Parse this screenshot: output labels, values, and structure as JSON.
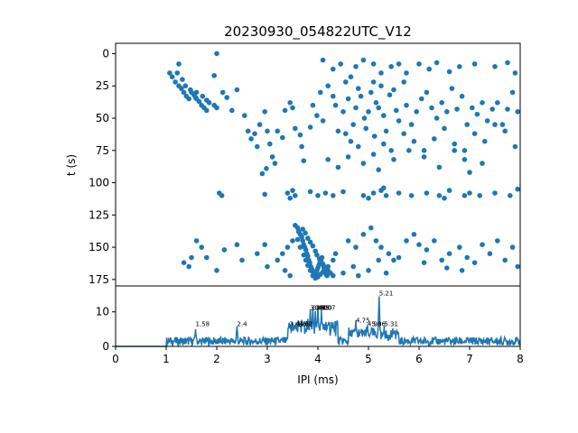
{
  "chart_data": [
    {
      "type": "scatter",
      "title": "20230930_054822UTC_V12",
      "ylabel": "t (s)",
      "xlim": [
        0,
        8
      ],
      "ylim": [
        180,
        -8
      ],
      "y_inverted": true,
      "yticks": [
        "0",
        "25",
        "50",
        "75",
        "100",
        "125",
        "150",
        "175"
      ],
      "color": "#1f77b4",
      "points": [
        [
          1.07,
          15
        ],
        [
          1.12,
          18
        ],
        [
          1.18,
          22
        ],
        [
          1.25,
          25
        ],
        [
          1.3,
          27
        ],
        [
          1.35,
          30
        ],
        [
          1.4,
          33
        ],
        [
          1.45,
          35
        ],
        [
          1.5,
          30
        ],
        [
          1.55,
          32
        ],
        [
          1.6,
          35
        ],
        [
          1.65,
          37
        ],
        [
          1.7,
          40
        ],
        [
          1.75,
          42
        ],
        [
          1.8,
          44
        ],
        [
          1.22,
          15
        ],
        [
          1.32,
          20
        ],
        [
          1.48,
          28
        ],
        [
          1.6,
          30
        ],
        [
          1.72,
          33
        ],
        [
          1.8,
          36
        ],
        [
          1.85,
          38
        ],
        [
          1.95,
          40
        ],
        [
          2.0,
          42
        ],
        [
          1.25,
          8
        ],
        [
          1.38,
          25
        ],
        [
          1.58,
          34
        ],
        [
          2.0,
          0
        ],
        [
          1.95,
          17
        ],
        [
          2.12,
          30
        ],
        [
          2.2,
          34
        ],
        [
          2.4,
          28
        ],
        [
          2.3,
          44
        ],
        [
          2.55,
          48
        ],
        [
          2.62,
          60
        ],
        [
          2.68,
          66
        ],
        [
          2.75,
          62
        ],
        [
          2.8,
          72
        ],
        [
          2.85,
          55
        ],
        [
          2.95,
          45
        ],
        [
          3.0,
          60
        ],
        [
          3.05,
          70
        ],
        [
          3.1,
          80
        ],
        [
          3.15,
          85
        ],
        [
          2.9,
          93
        ],
        [
          2.98,
          89
        ],
        [
          3.2,
          60
        ],
        [
          3.3,
          65
        ],
        [
          3.35,
          44
        ],
        [
          3.45,
          38
        ],
        [
          3.5,
          42
        ],
        [
          3.55,
          58
        ],
        [
          3.65,
          63
        ],
        [
          3.68,
          72
        ],
        [
          3.72,
          83
        ],
        [
          3.85,
          57
        ],
        [
          3.9,
          40
        ],
        [
          3.98,
          48
        ],
        [
          4.05,
          30
        ],
        [
          4.1,
          52
        ],
        [
          4.2,
          25
        ],
        [
          4.3,
          33
        ],
        [
          4.35,
          40
        ],
        [
          4.4,
          60
        ],
        [
          4.5,
          45
        ],
        [
          4.55,
          22
        ],
        [
          4.6,
          35
        ],
        [
          4.7,
          55
        ],
        [
          4.75,
          42
        ],
        [
          4.8,
          27
        ],
        [
          4.85,
          33
        ],
        [
          4.92,
          50
        ],
        [
          5.0,
          45
        ],
        [
          5.05,
          30
        ],
        [
          5.1,
          22
        ],
        [
          5.15,
          38
        ],
        [
          5.2,
          42
        ],
        [
          5.25,
          25
        ],
        [
          5.3,
          48
        ],
        [
          5.35,
          60
        ],
        [
          5.42,
          32
        ],
        [
          5.5,
          28
        ],
        [
          5.55,
          44
        ],
        [
          5.6,
          52
        ],
        [
          5.7,
          22
        ],
        [
          5.75,
          40
        ],
        [
          5.85,
          55
        ],
        [
          5.95,
          45
        ],
        [
          6.05,
          35
        ],
        [
          6.15,
          30
        ],
        [
          6.25,
          42
        ],
        [
          6.35,
          50
        ],
        [
          6.45,
          38
        ],
        [
          6.55,
          45
        ],
        [
          6.65,
          27
        ],
        [
          6.75,
          43
        ],
        [
          6.85,
          33
        ],
        [
          6.95,
          55
        ],
        [
          7.05,
          42
        ],
        [
          7.15,
          47
        ],
        [
          7.25,
          38
        ],
        [
          7.35,
          52
        ],
        [
          7.45,
          43
        ],
        [
          7.55,
          38
        ],
        [
          7.65,
          55
        ],
        [
          7.75,
          43
        ],
        [
          7.85,
          30
        ],
        [
          7.95,
          45
        ],
        [
          4.1,
          5
        ],
        [
          4.3,
          12
        ],
        [
          4.45,
          8
        ],
        [
          4.65,
          18
        ],
        [
          4.75,
          10
        ],
        [
          4.9,
          5
        ],
        [
          5.1,
          8
        ],
        [
          5.25,
          15
        ],
        [
          5.45,
          10
        ],
        [
          5.6,
          8
        ],
        [
          5.75,
          15
        ],
        [
          6.0,
          8
        ],
        [
          6.2,
          12
        ],
        [
          6.35,
          7
        ],
        [
          6.6,
          14
        ],
        [
          6.8,
          10
        ],
        [
          7.1,
          8
        ],
        [
          7.5,
          10
        ],
        [
          7.75,
          7
        ],
        [
          7.9,
          15
        ],
        [
          4.55,
          62
        ],
        [
          4.65,
          68
        ],
        [
          4.8,
          72
        ],
        [
          4.95,
          58
        ],
        [
          5.12,
          64
        ],
        [
          5.3,
          70
        ],
        [
          5.45,
          75
        ],
        [
          5.7,
          62
        ],
        [
          5.9,
          68
        ],
        [
          6.1,
          75
        ],
        [
          6.3,
          66
        ],
        [
          6.5,
          58
        ],
        [
          6.7,
          70
        ],
        [
          6.9,
          75
        ],
        [
          7.1,
          62
        ],
        [
          7.3,
          68
        ],
        [
          7.5,
          55
        ],
        [
          7.7,
          60
        ],
        [
          7.9,
          72
        ],
        [
          4.2,
          82
        ],
        [
          4.4,
          88
        ],
        [
          4.6,
          80
        ],
        [
          4.9,
          85
        ],
        [
          5.1,
          78
        ],
        [
          5.2,
          90
        ],
        [
          5.5,
          82
        ],
        [
          5.8,
          75
        ],
        [
          6.1,
          80
        ],
        [
          6.4,
          88
        ],
        [
          6.7,
          75
        ],
        [
          6.9,
          82
        ],
        [
          7.0,
          92
        ],
        [
          7.25,
          85
        ],
        [
          2.05,
          108
        ],
        [
          2.1,
          110
        ],
        [
          2.95,
          109
        ],
        [
          3.4,
          108
        ],
        [
          3.45,
          112
        ],
        [
          3.5,
          106
        ],
        [
          3.55,
          110
        ],
        [
          3.85,
          107
        ],
        [
          4.0,
          110
        ],
        [
          4.15,
          108
        ],
        [
          4.3,
          110
        ],
        [
          4.5,
          107
        ],
        [
          4.9,
          110
        ],
        [
          5.0,
          112
        ],
        [
          5.1,
          108
        ],
        [
          5.25,
          106
        ],
        [
          5.35,
          110
        ],
        [
          5.6,
          108
        ],
        [
          5.85,
          110
        ],
        [
          6.15,
          108
        ],
        [
          6.4,
          110
        ],
        [
          6.6,
          106
        ],
        [
          6.9,
          110
        ],
        [
          7.0,
          108
        ],
        [
          7.2,
          110
        ],
        [
          7.5,
          108
        ],
        [
          7.8,
          110
        ],
        [
          7.95,
          105
        ],
        [
          5.3,
          104
        ],
        [
          6.5,
          112
        ],
        [
          3.55,
          133
        ],
        [
          3.6,
          135
        ],
        [
          3.62,
          138
        ],
        [
          3.65,
          140
        ],
        [
          3.68,
          142
        ],
        [
          3.7,
          145
        ],
        [
          3.72,
          148
        ],
        [
          3.74,
          150
        ],
        [
          3.76,
          152
        ],
        [
          3.78,
          155
        ],
        [
          3.8,
          157
        ],
        [
          3.82,
          160
        ],
        [
          3.84,
          162
        ],
        [
          3.86,
          165
        ],
        [
          3.88,
          167
        ],
        [
          3.9,
          169
        ],
        [
          3.92,
          171
        ],
        [
          3.94,
          172
        ],
        [
          3.96,
          170
        ],
        [
          3.98,
          168
        ],
        [
          4.0,
          166
        ],
        [
          4.02,
          164
        ],
        [
          4.04,
          162
        ],
        [
          4.06,
          160
        ],
        [
          4.08,
          158
        ],
        [
          4.1,
          163
        ],
        [
          4.12,
          166
        ],
        [
          4.14,
          169
        ],
        [
          4.16,
          171
        ],
        [
          4.18,
          172
        ],
        [
          3.7,
          136
        ],
        [
          3.75,
          139
        ],
        [
          3.8,
          143
        ],
        [
          3.85,
          146
        ],
        [
          3.9,
          149
        ],
        [
          3.95,
          153
        ],
        [
          3.98,
          156
        ],
        [
          4.03,
          159
        ],
        [
          4.07,
          162
        ],
        [
          4.12,
          165
        ],
        [
          4.2,
          168
        ],
        [
          4.25,
          170
        ],
        [
          4.3,
          172
        ],
        [
          3.6,
          144
        ],
        [
          3.65,
          150
        ],
        [
          3.72,
          156
        ],
        [
          3.76,
          160
        ],
        [
          3.8,
          164
        ],
        [
          3.85,
          168
        ],
        [
          3.9,
          172
        ],
        [
          3.95,
          174
        ],
        [
          4.0,
          173
        ],
        [
          4.05,
          171
        ],
        [
          4.1,
          169
        ],
        [
          4.15,
          167
        ],
        [
          4.2,
          165
        ],
        [
          4.3,
          160
        ],
        [
          4.35,
          155
        ],
        [
          3.5,
          145
        ],
        [
          3.4,
          150
        ],
        [
          3.3,
          155
        ],
        [
          3.2,
          160
        ],
        [
          3.35,
          168
        ],
        [
          3.45,
          172
        ],
        [
          1.35,
          162
        ],
        [
          1.45,
          165
        ],
        [
          1.5,
          158
        ],
        [
          1.6,
          145
        ],
        [
          1.7,
          150
        ],
        [
          1.8,
          158
        ],
        [
          2.0,
          168
        ],
        [
          2.15,
          152
        ],
        [
          2.4,
          148
        ],
        [
          2.5,
          160
        ],
        [
          2.8,
          155
        ],
        [
          2.95,
          148
        ],
        [
          3.0,
          165
        ],
        [
          4.6,
          145
        ],
        [
          4.75,
          150
        ],
        [
          4.9,
          140
        ],
        [
          5.05,
          135
        ],
        [
          5.15,
          145
        ],
        [
          5.25,
          150
        ],
        [
          5.4,
          155
        ],
        [
          5.5,
          160
        ],
        [
          5.6,
          158
        ],
        [
          5.75,
          145
        ],
        [
          5.9,
          140
        ],
        [
          6.0,
          148
        ],
        [
          6.15,
          152
        ],
        [
          6.3,
          145
        ],
        [
          6.45,
          160
        ],
        [
          6.6,
          155
        ],
        [
          6.8,
          150
        ],
        [
          6.95,
          158
        ],
        [
          7.1,
          162
        ],
        [
          7.25,
          148
        ],
        [
          7.4,
          155
        ],
        [
          7.55,
          145
        ],
        [
          7.7,
          160
        ],
        [
          7.85,
          150
        ],
        [
          7.95,
          165
        ],
        [
          4.5,
          170
        ],
        [
          4.7,
          165
        ],
        [
          4.8,
          172
        ],
        [
          5.0,
          168
        ],
        [
          5.2,
          160
        ],
        [
          5.35,
          170
        ],
        [
          6.1,
          162
        ],
        [
          6.55,
          166
        ],
        [
          6.85,
          168
        ]
      ]
    },
    {
      "type": "line",
      "xlabel": "IPI (ms)",
      "xlim": [
        0,
        8
      ],
      "ylim": [
        0,
        17.5
      ],
      "xticks": [
        "0",
        "1",
        "2",
        "3",
        "4",
        "5",
        "6",
        "7",
        "8"
      ],
      "yticks": [
        "0",
        "10"
      ],
      "color": "#1f77b4",
      "annotations": [
        {
          "x": 1.58,
          "y": 5.9,
          "text": "1.58"
        },
        {
          "x": 2.4,
          "y": 5.9,
          "text": "2.4"
        },
        {
          "x": 3.44,
          "y": 5.9,
          "text": "3.44"
        },
        {
          "x": 3.58,
          "y": 5.9,
          "text": "3.58"
        },
        {
          "x": 3.62,
          "y": 5.9,
          "text": "3.62"
        },
        {
          "x": 3.85,
          "y": 10.6,
          "text": "3.85"
        },
        {
          "x": 3.9,
          "y": 10.6,
          "text": "3.90"
        },
        {
          "x": 3.95,
          "y": 10.6,
          "text": "3.95"
        },
        {
          "x": 4.0,
          "y": 10.6,
          "text": "4.00"
        },
        {
          "x": 4.07,
          "y": 10.6,
          "text": "4.07"
        },
        {
          "x": 4.75,
          "y": 6.9,
          "text": "4.75"
        },
        {
          "x": 4.98,
          "y": 5.9,
          "text": "4.98"
        },
        {
          "x": 5.06,
          "y": 5.9,
          "text": "5.06"
        },
        {
          "x": 5.21,
          "y": 14.8,
          "text": "5.21"
        },
        {
          "x": 5.31,
          "y": 5.9,
          "text": "5.31"
        }
      ],
      "peaks": [
        [
          1.58,
          5
        ],
        [
          2.4,
          5.8
        ],
        [
          3.44,
          4.8
        ],
        [
          3.58,
          4.6
        ],
        [
          3.62,
          5.2
        ],
        [
          3.85,
          10.8
        ],
        [
          3.9,
          11.5
        ],
        [
          3.95,
          10.2
        ],
        [
          4.0,
          11
        ],
        [
          4.07,
          10.5
        ],
        [
          4.75,
          7.5
        ],
        [
          4.98,
          6.2
        ],
        [
          5.06,
          5.5
        ],
        [
          5.21,
          14.5
        ],
        [
          5.31,
          5.8
        ]
      ]
    }
  ]
}
